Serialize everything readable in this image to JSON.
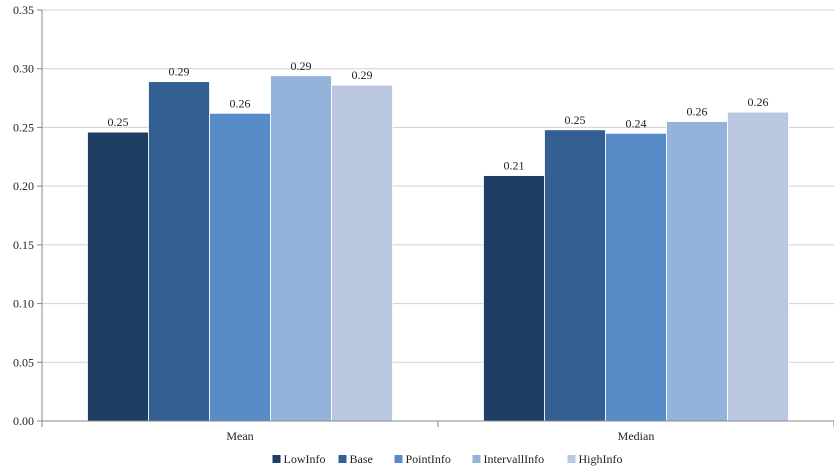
{
  "chart_data": {
    "type": "bar",
    "categories": [
      "Mean",
      "Median"
    ],
    "series": [
      {
        "name": "LowInfo",
        "values": [
          0.246,
          0.209
        ],
        "labels": [
          "0.25",
          "0.21"
        ],
        "color": "#1F3E63"
      },
      {
        "name": "Base",
        "values": [
          0.289,
          0.248
        ],
        "labels": [
          "0.29",
          "0.25"
        ],
        "color": "#345F93"
      },
      {
        "name": "PointInfo",
        "values": [
          0.262,
          0.245
        ],
        "labels": [
          "0.26",
          "0.24"
        ],
        "color": "#588CC9"
      },
      {
        "name": "IntervallInfo",
        "values": [
          0.294,
          0.255
        ],
        "labels": [
          "0.29",
          "0.26"
        ],
        "color": "#94B3DA"
      },
      {
        "name": "HighInfo",
        "values": [
          0.286,
          0.263
        ],
        "labels": [
          "0.29",
          "0.26"
        ],
        "color": "#B9C7E0"
      }
    ],
    "yticks": [
      "0.00",
      "0.05",
      "0.10",
      "0.15",
      "0.20",
      "0.25",
      "0.30",
      "0.35"
    ],
    "ylim": [
      0,
      0.35
    ],
    "title": "",
    "xlabel": "",
    "ylabel": "",
    "grid": true,
    "legend_position": "bottom"
  }
}
